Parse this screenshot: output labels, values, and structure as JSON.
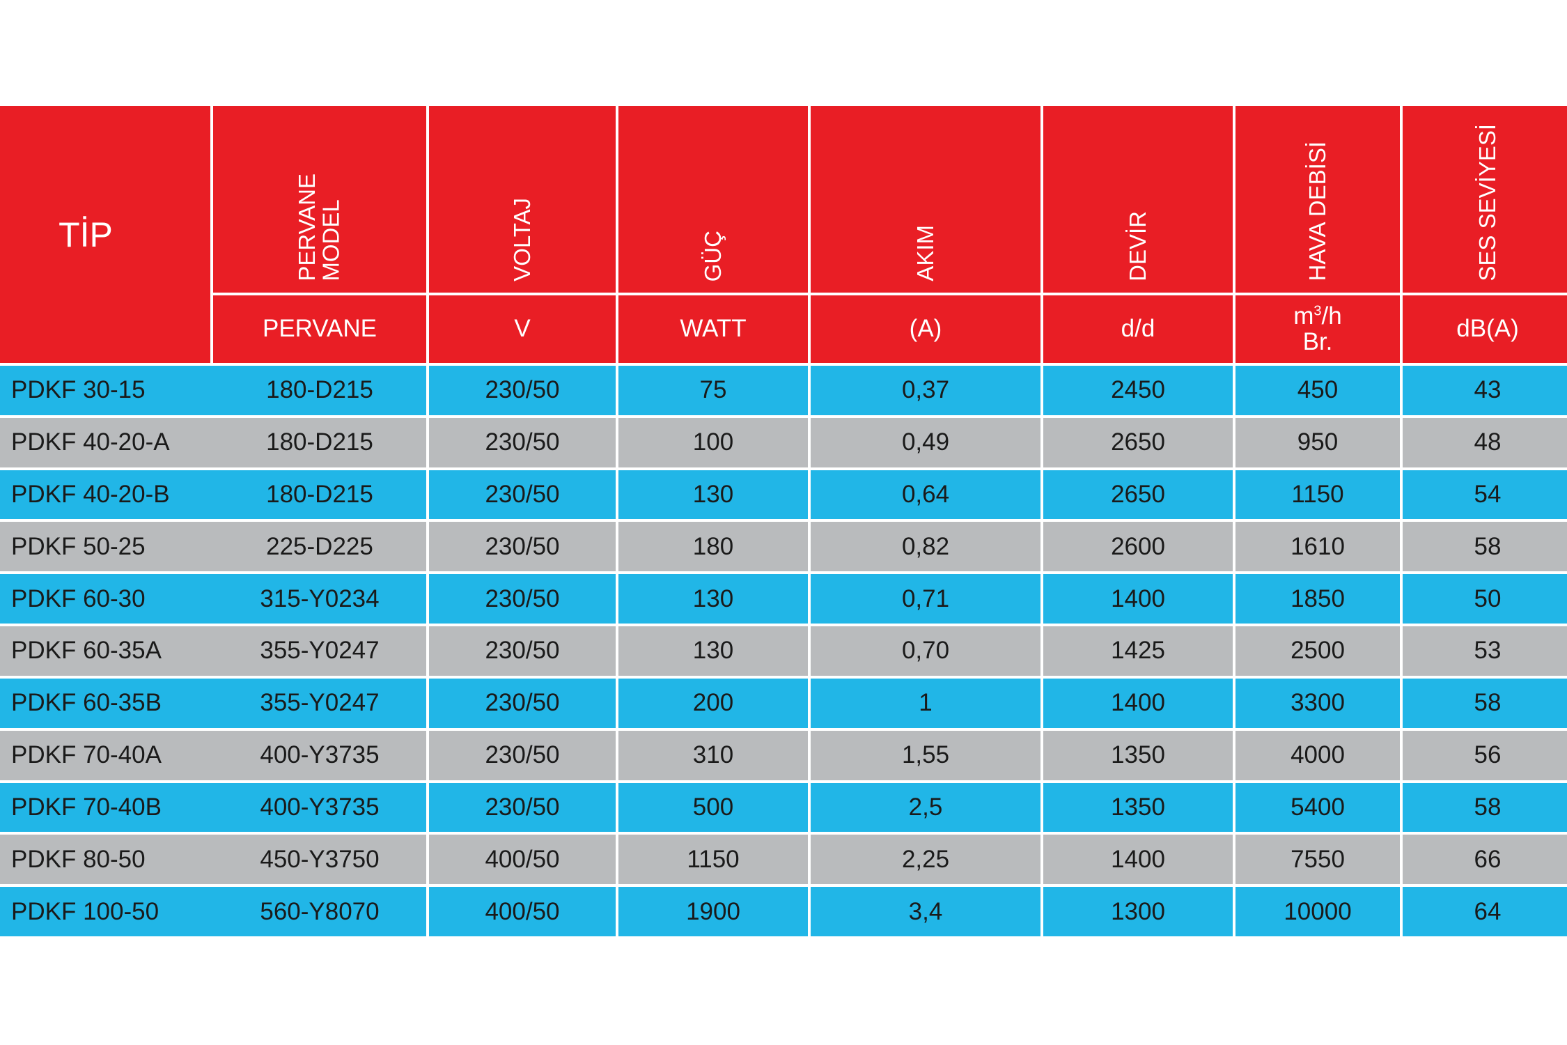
{
  "header": {
    "tip": "TİP",
    "columns": [
      {
        "title": "PERVANE\nMODEL",
        "unit": "PERVANE"
      },
      {
        "title": "VOLTAJ",
        "unit": "V"
      },
      {
        "title": "GÜÇ",
        "unit": "WATT"
      },
      {
        "title": "AKIM",
        "unit": "(A)"
      },
      {
        "title": "DEVİR",
        "unit": "d/d"
      },
      {
        "title": "HAVA DEBİSİ",
        "unit_main": "m",
        "unit_sup": "3",
        "unit_tail": "/h",
        "unit_line2": "Br."
      },
      {
        "title": "SES SEVİYESİ",
        "unit": "dB(A)"
      }
    ]
  },
  "rows": [
    [
      "PDKF 30-15",
      "180-D215",
      "230/50",
      "75",
      "0,37",
      "2450",
      "450",
      "43"
    ],
    [
      "PDKF 40-20-A",
      "180-D215",
      "230/50",
      "100",
      "0,49",
      "2650",
      "950",
      "48"
    ],
    [
      "PDKF 40-20-B",
      "180-D215",
      "230/50",
      "130",
      "0,64",
      "2650",
      "1150",
      "54"
    ],
    [
      "PDKF 50-25",
      "225-D225",
      "230/50",
      "180",
      "0,82",
      "2600",
      "1610",
      "58"
    ],
    [
      "PDKF 60-30",
      "315-Y0234",
      "230/50",
      "130",
      "0,71",
      "1400",
      "1850",
      "50"
    ],
    [
      "PDKF 60-35A",
      "355-Y0247",
      "230/50",
      "130",
      "0,70",
      "1425",
      "2500",
      "53"
    ],
    [
      "PDKF 60-35B",
      "355-Y0247",
      "230/50",
      "200",
      "1",
      "1400",
      "3300",
      "58"
    ],
    [
      "PDKF 70-40A",
      "400-Y3735",
      "230/50",
      "310",
      "1,55",
      "1350",
      "4000",
      "56"
    ],
    [
      "PDKF 70-40B",
      "400-Y3735",
      "230/50",
      "500",
      "2,5",
      "1350",
      "5400",
      "58"
    ],
    [
      "PDKF 80-50",
      "450-Y3750",
      "400/50",
      "1150",
      "2,25",
      "1400",
      "7550",
      "66"
    ],
    [
      "PDKF 100-50",
      "560-Y8070",
      "400/50",
      "1900",
      "3,4",
      "1300",
      "10000",
      "64"
    ]
  ],
  "colors": {
    "header_red": "#e91e25",
    "row_blue": "#21b6e7",
    "row_gray": "#b9bbbd"
  }
}
